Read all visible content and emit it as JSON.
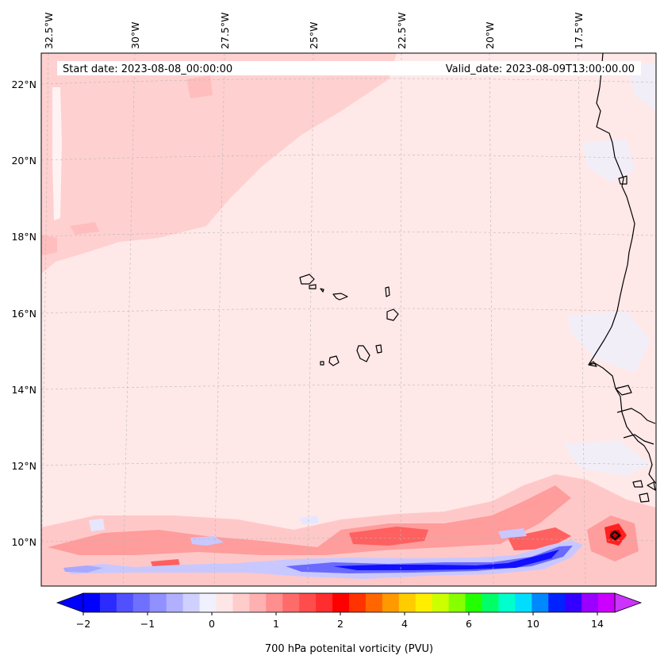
{
  "map": {
    "title_left": "Start date: 2023-08-08_00:00:00",
    "title_right": "Valid_date: 2023-08-09T13:00:00.00",
    "lon_labels": [
      "32.5°W",
      "30°W",
      "27.5°W",
      "25°W",
      "22.5°W",
      "20°W",
      "17.5°W"
    ],
    "lat_labels": [
      "22°N",
      "20°N",
      "18°N",
      "16°N",
      "14°N",
      "12°N",
      "10°N"
    ],
    "features": [
      "Cape Verde islands",
      "West African coastline"
    ]
  },
  "colorbar": {
    "label": "700 hPa potenital vorticity (PVU)",
    "tick_labels": [
      "−2",
      "−1",
      "0",
      "1",
      "2",
      "4",
      "6",
      "10",
      "14"
    ],
    "colors": [
      "#0000ff",
      "#2b2bff",
      "#5050ff",
      "#7070ff",
      "#9090ff",
      "#b0b0ff",
      "#d0d0ff",
      "#f0f0ff",
      "#ffe6e6",
      "#ffcccc",
      "#ffb0b0",
      "#ff8e8e",
      "#ff6b6b",
      "#ff4c4c",
      "#ff2d2d",
      "#ff0000",
      "#ff3300",
      "#ff6600",
      "#ff9900",
      "#ffcc00",
      "#ffee00",
      "#ccff00",
      "#88ff00",
      "#22ff00",
      "#00ff66",
      "#00ffcc",
      "#00ddff",
      "#0088ff",
      "#0022ff",
      "#3300ff",
      "#9900ff",
      "#cc00ff"
    ],
    "min_color": "#0000ff",
    "max_color": "#cc33ff"
  },
  "colors": {
    "background_pv": "#ffe8e8",
    "light_pv": "#ffcfcf",
    "mid_pv": "#ff9a9a",
    "high_pv": "#ff3d3d",
    "negative_pv": "#2020ff"
  }
}
